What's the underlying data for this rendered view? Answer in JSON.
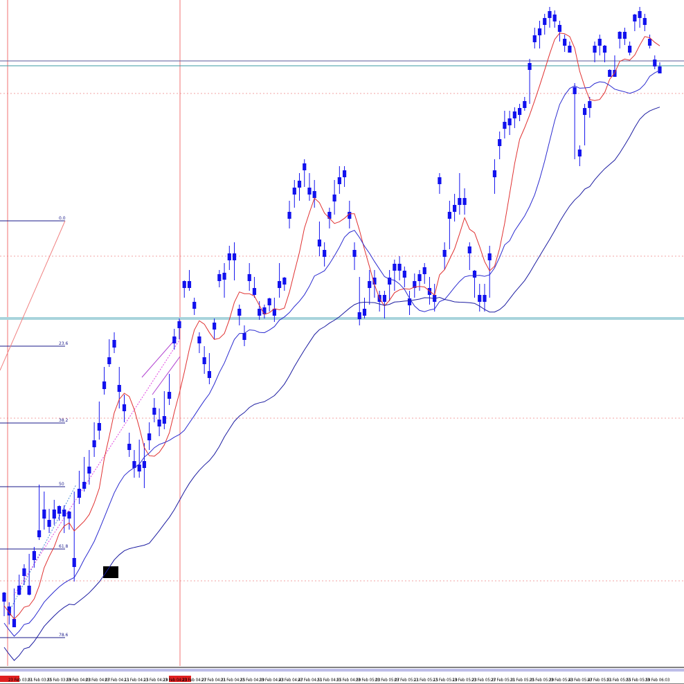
{
  "chart_data": {
    "type": "candlestick",
    "x_labels": [
      "23 Feb 03:51",
      "23 Feb 03:55",
      "23 Feb 03:59",
      "23 Feb 04:03",
      "23 Feb 04:07",
      "23 Feb 04:11",
      "23 Feb 04:15",
      "23 Feb 04:19",
      "23 Feb 04:23",
      "23 Feb 04:27",
      "23 Feb 04:31",
      "23 Feb 04:35",
      "23 Feb 04:39",
      "23 Feb 04:43",
      "23 Feb 04:47",
      "23 Feb 04:51",
      "23 Feb 04:55",
      "23 Feb 04:59",
      "23 Feb 05:03",
      "23 Feb 05:07",
      "23 Feb 05:11",
      "23 Feb 05:15",
      "23 Feb 05:19",
      "23 Feb 05:23",
      "23 Feb 05:27",
      "23 Feb 05:31",
      "23 Feb 05:35",
      "23 Feb 05:39",
      "23 Feb 05:43",
      "23 Feb 05:47",
      "23 Feb 05:51",
      "23 Feb 05:55",
      "23 Feb 05:59",
      "23 Feb 06:03"
    ],
    "highlighted_time_label": "",
    "fib_levels": [
      {
        "label": "0.0"
      },
      {
        "label": "23.6"
      },
      {
        "label": "38.2"
      },
      {
        "label": "50"
      },
      {
        "label": "61.8"
      },
      {
        "label": "78.6"
      }
    ],
    "candles": [
      [
        850,
        855,
        880,
        845
      ],
      [
        870,
        875,
        892,
        860
      ],
      [
        888,
        892,
        895,
        840
      ],
      [
        840,
        845,
        850,
        820
      ],
      [
        815,
        818,
        835,
        805
      ],
      [
        840,
        845,
        850,
        790
      ],
      [
        790,
        795,
        810,
        780
      ],
      [
        760,
        762,
        770,
        690
      ],
      [
        730,
        735,
        755,
        700
      ],
      [
        745,
        747,
        760,
        725
      ],
      [
        730,
        735,
        748,
        712
      ],
      [
        725,
        728,
        742,
        720
      ],
      [
        730,
        732,
        760,
        720
      ],
      [
        733,
        735,
        755,
        728
      ],
      [
        800,
        805,
        830,
        700
      ],
      [
        700,
        705,
        718,
        670
      ],
      [
        690,
        692,
        700,
        650
      ],
      [
        668,
        670,
        690,
        640
      ],
      [
        630,
        632,
        650,
        600
      ],
      [
        605,
        608,
        625,
        570
      ],
      [
        545,
        548,
        560,
        520
      ],
      [
        510,
        512,
        520,
        480
      ],
      [
        485,
        488,
        500,
        470
      ],
      [
        550,
        552,
        580,
        520
      ],
      [
        578,
        580,
        600,
        560
      ],
      [
        635,
        636,
        650,
        615
      ],
      [
        660,
        662,
        680,
        640
      ],
      [
        665,
        667,
        680,
        625
      ],
      [
        660,
        662,
        695,
        630
      ],
      [
        620,
        622,
        640,
        600
      ],
      [
        583,
        585,
        600,
        565
      ],
      [
        600,
        602,
        620,
        580
      ],
      [
        595,
        598,
        610,
        555
      ],
      [
        560,
        562,
        575,
        530
      ],
      [
        480,
        482,
        495,
        465
      ],
      [
        458,
        460,
        480,
        450
      ],
      [
        400,
        402,
        420,
        395
      ],
      [
        400,
        402,
        410,
        380
      ],
      [
        430,
        432,
        445,
        420
      ],
      [
        480,
        482,
        500,
        470
      ],
      [
        510,
        512,
        530,
        490
      ],
      [
        530,
        532,
        545,
        500
      ],
      [
        460,
        462,
        480,
        450
      ],
      [
        390,
        392,
        405,
        380
      ],
      [
        388,
        390,
        420,
        370
      ],
      [
        360,
        362,
        380,
        345
      ],
      [
        360,
        362,
        395,
        340
      ],
      [
        440,
        442,
        460,
        430
      ],
      [
        475,
        477,
        490,
        460
      ],
      [
        390,
        392,
        410,
        370
      ],
      [
        410,
        412,
        420,
        390
      ],
      [
        440,
        442,
        452,
        425
      ],
      [
        438,
        440,
        450,
        430
      ],
      [
        425,
        427,
        440,
        420
      ],
      [
        440,
        442,
        455,
        420
      ],
      [
        400,
        402,
        420,
        370
      ],
      [
        395,
        397,
        410,
        390
      ],
      [
        300,
        302,
        320,
        280
      ],
      [
        265,
        267,
        290,
        250
      ],
      [
        255,
        257,
        280,
        240
      ],
      [
        230,
        232,
        260,
        220
      ],
      [
        265,
        267,
        280,
        240
      ],
      [
        270,
        272,
        290,
        250
      ],
      [
        340,
        342,
        360,
        310
      ],
      [
        355,
        357,
        375,
        340
      ],
      [
        300,
        302,
        320,
        290
      ],
      [
        275,
        277,
        300,
        250
      ],
      [
        250,
        252,
        270,
        230
      ],
      [
        240,
        242,
        260,
        230
      ],
      [
        300,
        302,
        320,
        280
      ],
      [
        355,
        357,
        380,
        340
      ],
      [
        445,
        447,
        460,
        390
      ],
      [
        440,
        442,
        450,
        420
      ],
      [
        400,
        402,
        430,
        380
      ],
      [
        395,
        397,
        420,
        380
      ],
      [
        420,
        422,
        440,
        410
      ],
      [
        420,
        422,
        450,
        410
      ],
      [
        395,
        397,
        425,
        380
      ],
      [
        375,
        377,
        410,
        365
      ],
      [
        375,
        377,
        395,
        360
      ],
      [
        385,
        387,
        405,
        375
      ],
      [
        425,
        427,
        445,
        410
      ],
      [
        400,
        402,
        420,
        385
      ],
      [
        390,
        392,
        410,
        380
      ],
      [
        380,
        382,
        400,
        370
      ],
      [
        410,
        412,
        430,
        390
      ],
      [
        420,
        422,
        440,
        400
      ],
      [
        250,
        252,
        270,
        240
      ],
      [
        355,
        357,
        380,
        340
      ],
      [
        300,
        302,
        350,
        280
      ],
      [
        290,
        292,
        310,
        270
      ],
      [
        280,
        282,
        300,
        240
      ],
      [
        280,
        282,
        300,
        262
      ],
      [
        350,
        352,
        380,
        340
      ],
      [
        385,
        387,
        420,
        380
      ],
      [
        420,
        422,
        440,
        400
      ],
      [
        420,
        422,
        440,
        400
      ],
      [
        360,
        362,
        420,
        345
      ],
      [
        240,
        242,
        270,
        220
      ],
      [
        195,
        197,
        220,
        180
      ],
      [
        170,
        172,
        190,
        150
      ],
      [
        165,
        167,
        185,
        150
      ],
      [
        155,
        157,
        175,
        145
      ],
      [
        150,
        152,
        165,
        140
      ],
      [
        140,
        142,
        150,
        130
      ],
      [
        85,
        87,
        140,
        75
      ],
      [
        45,
        47,
        60,
        30
      ],
      [
        35,
        37,
        60,
        20
      ],
      [
        20,
        22,
        40,
        10
      ],
      [
        10,
        12,
        30,
        0
      ],
      [
        15,
        17,
        30,
        5
      ],
      [
        30,
        32,
        50,
        20
      ],
      [
        50,
        52,
        65,
        40
      ],
      [
        60,
        62,
        65,
        50
      ],
      [
        120,
        122,
        220,
        110
      ],
      [
        210,
        212,
        230,
        200
      ],
      [
        150,
        152,
        200,
        140
      ],
      [
        140,
        142,
        160,
        130
      ],
      [
        60,
        62,
        80,
        50
      ],
      [
        50,
        52,
        70,
        40
      ],
      [
        60,
        62,
        80,
        55
      ],
      [
        95,
        97,
        100,
        90
      ],
      [
        95,
        97,
        100,
        70
      ],
      [
        40,
        42,
        60,
        35
      ],
      [
        40,
        42,
        55,
        30
      ],
      [
        60,
        62,
        70,
        50
      ],
      [
        15,
        17,
        35,
        10
      ],
      [
        10,
        12,
        30,
        0
      ],
      [
        20,
        22,
        35,
        10
      ],
      [
        50,
        52,
        60,
        40
      ],
      [
        80,
        82,
        90,
        70
      ],
      [
        90,
        92,
        95,
        80
      ]
    ]
  }
}
